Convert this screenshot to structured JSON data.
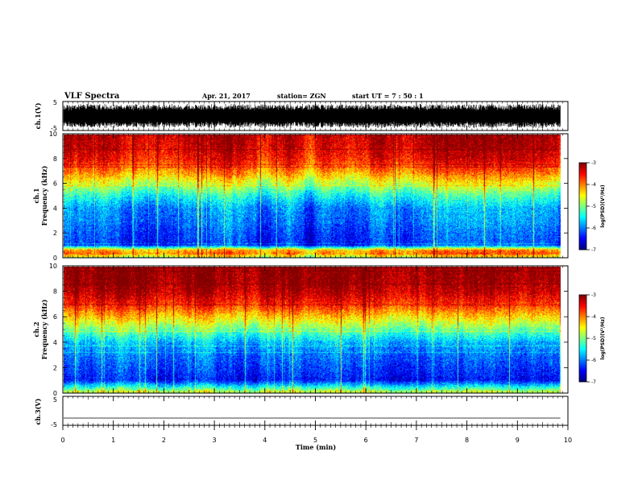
{
  "header": {
    "title": "VLF Spectra",
    "date": "Apr. 21, 2017",
    "station": "station= ZGN",
    "start": "start  UT  =   7 : 50 : 1"
  },
  "chart_data": [
    {
      "type": "line",
      "panel": "ch1-waveform",
      "ylabel": "ch.1(V)",
      "ylim": [
        -5,
        5
      ],
      "yticks": [
        "5",
        "-5"
      ],
      "xlim": [
        0,
        10
      ],
      "trace_end": 9.85,
      "pattern": "dense noisy waveform spanning roughly -4 to 4 V"
    },
    {
      "type": "heatmap",
      "panel": "ch1-spectrogram",
      "ylabel": "ch.1 Frequency (kHz)",
      "ylim": [
        0,
        10
      ],
      "yticks": [
        "0",
        "2",
        "4",
        "6",
        "8",
        "10"
      ],
      "xlim": [
        0,
        10
      ],
      "data_end": 9.85,
      "colorbar": {
        "label": "log(PSD)(V²/Hz)",
        "range": [
          -7,
          -3
        ],
        "ticks": [
          "-3",
          "-4",
          "-5",
          "-6",
          "-7"
        ]
      },
      "profile": [
        {
          "f": 0.0,
          "v": -4.9
        },
        {
          "f": 0.3,
          "v": -3.9
        },
        {
          "f": 0.6,
          "v": -4.2
        },
        {
          "f": 1.0,
          "v": -6.3
        },
        {
          "f": 2.0,
          "v": -6.2
        },
        {
          "f": 3.0,
          "v": -6.0
        },
        {
          "f": 4.0,
          "v": -5.9
        },
        {
          "f": 5.0,
          "v": -5.4
        },
        {
          "f": 6.0,
          "v": -4.7
        },
        {
          "f": 7.0,
          "v": -4.0
        },
        {
          "f": 8.0,
          "v": -3.5
        },
        {
          "f": 9.0,
          "v": -3.3
        },
        {
          "f": 10.0,
          "v": -3.2
        }
      ]
    },
    {
      "type": "heatmap",
      "panel": "ch2-spectrogram",
      "ylabel": "ch.2 Frequency (kHz)",
      "ylim": [
        0,
        10
      ],
      "yticks": [
        "0",
        "2",
        "4",
        "6",
        "8",
        "10"
      ],
      "xlim": [
        0,
        10
      ],
      "data_end": 9.85,
      "colorbar": {
        "label": "log(PSD)(V²/Hz)",
        "range": [
          -7,
          -3
        ],
        "ticks": [
          "-3",
          "-4",
          "-5",
          "-6",
          "-7"
        ]
      },
      "profile": [
        {
          "f": 0.0,
          "v": -4.8
        },
        {
          "f": 0.3,
          "v": -5.2
        },
        {
          "f": 1.0,
          "v": -6.5
        },
        {
          "f": 2.0,
          "v": -6.3
        },
        {
          "f": 3.0,
          "v": -6.1
        },
        {
          "f": 4.0,
          "v": -5.8
        },
        {
          "f": 5.0,
          "v": -5.1
        },
        {
          "f": 6.0,
          "v": -4.4
        },
        {
          "f": 7.0,
          "v": -3.7
        },
        {
          "f": 8.0,
          "v": -3.3
        },
        {
          "f": 9.0,
          "v": -3.1
        },
        {
          "f": 10.0,
          "v": -3.1
        }
      ]
    },
    {
      "type": "line",
      "panel": "ch3-waveform",
      "ylabel": "ch.3(V)",
      "ylim": [
        -5,
        5
      ],
      "yticks": [
        "5",
        "-5"
      ],
      "xlim": [
        0,
        10
      ],
      "trace_value": -2.5,
      "trace_end": 9.85,
      "xlabel": "Time  (min)",
      "xticks": [
        "0",
        "1",
        "2",
        "3",
        "4",
        "5",
        "6",
        "7",
        "8",
        "9",
        "10"
      ]
    }
  ]
}
